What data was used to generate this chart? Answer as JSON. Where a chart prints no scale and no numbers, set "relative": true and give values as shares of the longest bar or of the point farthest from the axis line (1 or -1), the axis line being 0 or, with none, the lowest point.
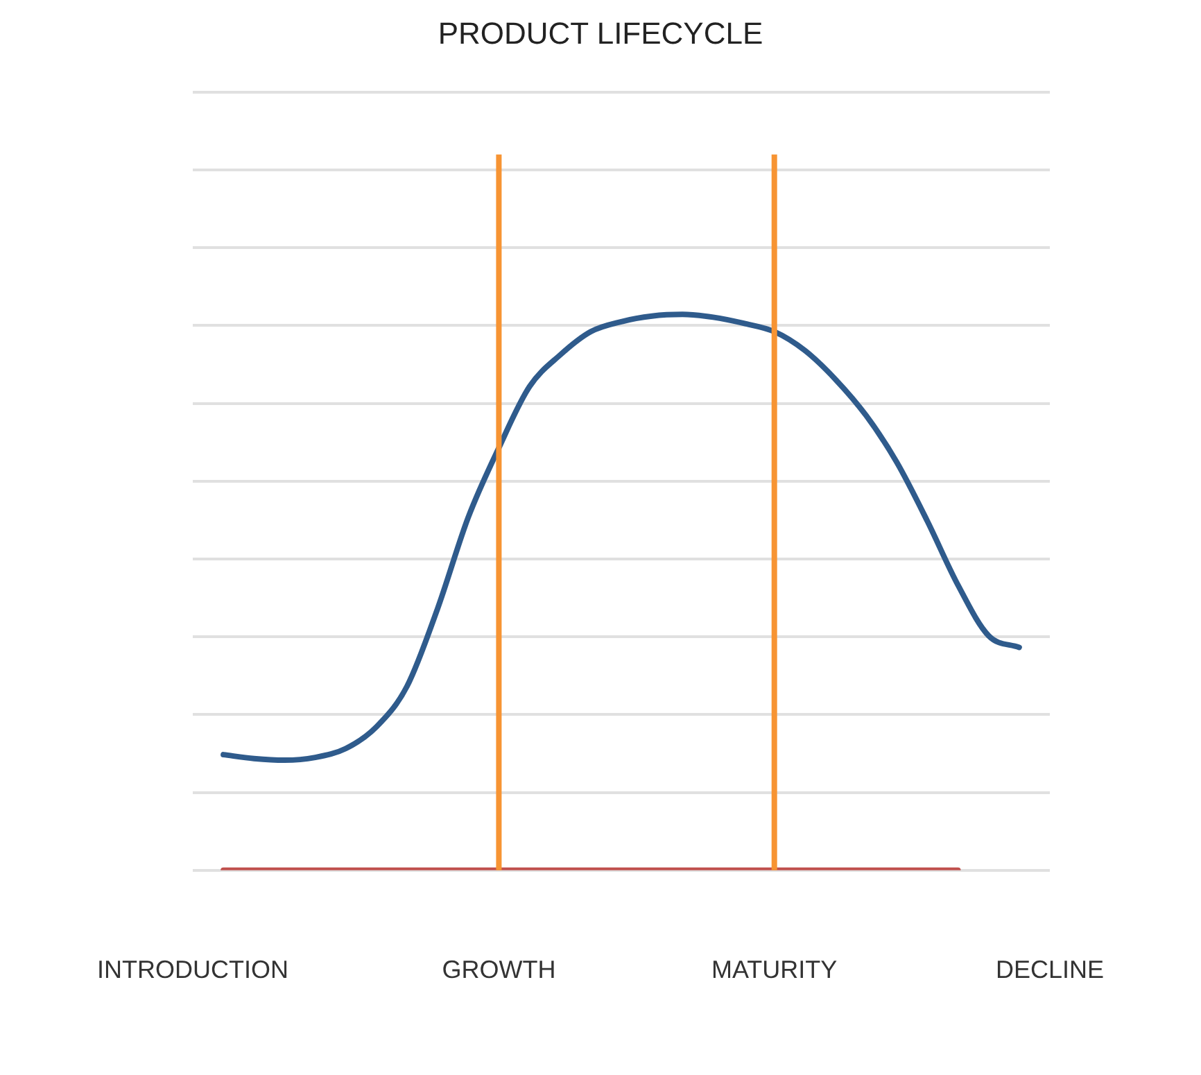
{
  "chart_data": {
    "type": "line",
    "title": "PRODUCT LIFECYCLE",
    "relative": true,
    "grid": "y",
    "legend": false,
    "marker": "none",
    "line_style": "solid",
    "categories": [
      "INTRODUCTION",
      null,
      null,
      null,
      null,
      null,
      null,
      null,
      null,
      null,
      "GROWTH",
      null,
      null,
      null,
      null,
      null,
      null,
      null,
      null,
      "MATURITY",
      null,
      null,
      null,
      null,
      null,
      null,
      null,
      null,
      "DECLINE"
    ],
    "series": [
      {
        "color": "#2f5b8c",
        "values": [
          null,
          0.208,
          0.201,
          0.198,
          0.203,
          0.219,
          0.258,
          0.331,
          0.471,
          0.635,
          0.76,
          0.87,
          0.927,
          0.969,
          0.987,
          0.997,
          1.0,
          0.995,
          0.984,
          0.969,
          0.935,
          0.883,
          0.818,
          0.734,
          0.628,
          0.513,
          0.422,
          0.401,
          null
        ]
      },
      {
        "color": "#c0504d",
        "values": [
          null,
          0,
          0,
          0,
          0,
          0,
          0,
          0,
          0,
          0,
          0,
          0,
          0,
          0,
          0,
          0,
          0,
          0,
          0,
          0,
          0,
          0,
          0,
          0,
          0,
          0,
          null,
          null,
          null
        ]
      }
    ],
    "ref_lines": [
      {
        "axis": "x",
        "value": "GROWTH",
        "color": "#f79433"
      },
      {
        "axis": "x",
        "value": "MATURITY",
        "color": "#f79433"
      }
    ]
  }
}
